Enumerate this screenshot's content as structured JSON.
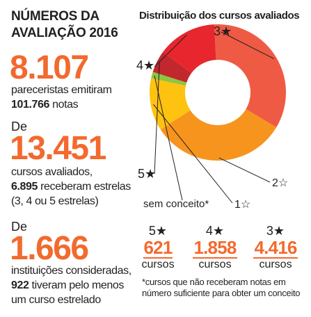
{
  "header": {
    "line1": "NÚMEROS DA",
    "line2": "AVALIAÇÃO 2016"
  },
  "block1": {
    "big": "8.107",
    "line1": "pareceristas emitiram",
    "line2_bold": "101.766",
    "line2_rest": " notas"
  },
  "block2": {
    "pre": "De",
    "big": "13.451",
    "line1": "cursos avaliados,",
    "line2_bold": "6.895",
    "line2_rest": " receberam estrelas",
    "line3": "(3, 4 ou 5 estrelas)"
  },
  "block3": {
    "pre": "De",
    "big": "1.666",
    "line1": "instituições consideradas,",
    "line2_bold": "922",
    "line2_rest": " tiveram pelo menos",
    "line3": "um curso estrelado"
  },
  "stats": [
    {
      "stars": "5★",
      "value": "621",
      "unit": "cursos"
    },
    {
      "stars": "4★",
      "value": "1.858",
      "unit": "cursos"
    },
    {
      "stars": "3★",
      "value": "4.416",
      "unit": "cursos"
    }
  ],
  "footnote": "*cursos que não receberam notas em número suficiente para obter um conceito",
  "chart_data": {
    "type": "pie",
    "title": "Distribuição dos cursos avaliados",
    "donut": true,
    "slices": [
      {
        "label": "3★",
        "value": 33,
        "color": "#ef5a45"
      },
      {
        "label": "2☆",
        "value": 31,
        "color": "#f7941d"
      },
      {
        "label": "1☆",
        "value": 12,
        "color": "#fec210"
      },
      {
        "label": "sem conceito*",
        "value": 1.5,
        "color": "#8dc63f"
      },
      {
        "label": "5★",
        "value": 5,
        "color": "#c1272d"
      },
      {
        "label": "4★",
        "value": 13.5,
        "color": "#e8262d"
      }
    ]
  }
}
